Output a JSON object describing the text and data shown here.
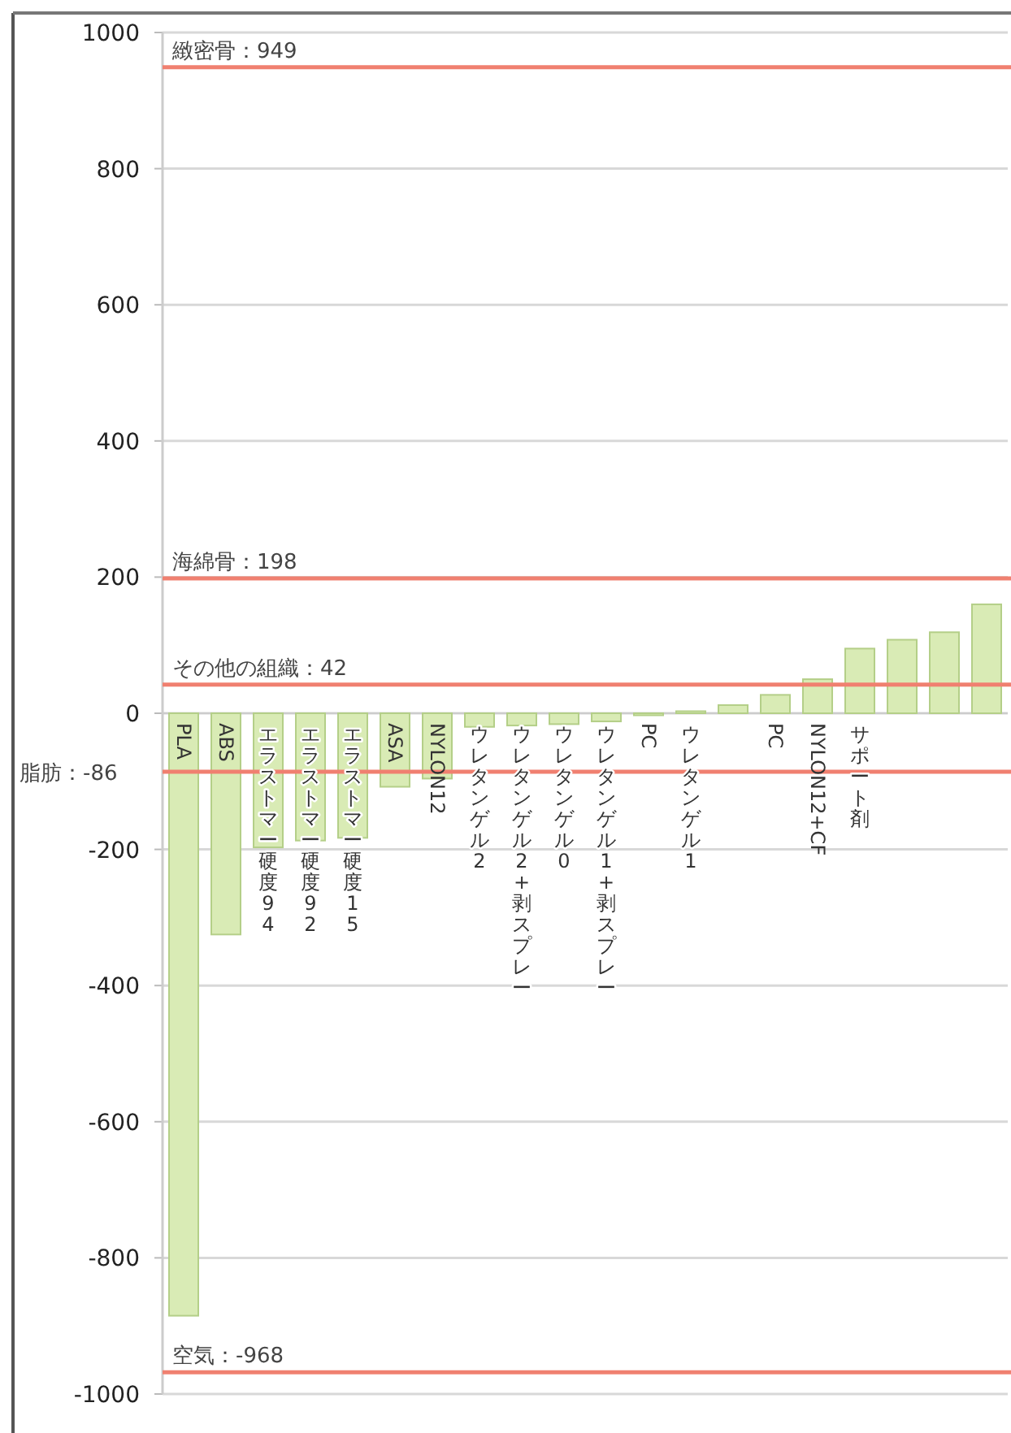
{
  "chart_data": {
    "type": "bar",
    "categories": [
      "PLA",
      "ABS",
      "エラストマー硬度94",
      "エラストマー硬度92",
      "エラストマー硬度15",
      "ASA",
      "NYLON12",
      "ウレタンゲル2",
      "ウレタンゲル2+剥スプレー",
      "ウレタンゲル0",
      "ウレタンゲル1+剥スプレー",
      "PC",
      "ウレタンゲル1",
      null,
      "PC",
      "NYLON12+CF",
      "サポート剤",
      null,
      null,
      null
    ],
    "values": [
      -885,
      -325,
      -197,
      -187,
      -183,
      -108,
      -96,
      -20,
      -18,
      -16,
      -12,
      -3,
      3,
      12,
      27,
      50,
      95,
      108,
      119,
      160
    ],
    "color": "#d9ebb5",
    "ylim": [
      -1000,
      1000
    ],
    "yticks": [
      -1000,
      -800,
      -600,
      -400,
      -200,
      0,
      200,
      400,
      600,
      800,
      1000
    ],
    "grid": "y",
    "ref_lines": [
      {
        "axis": "y",
        "value": 949,
        "label": "緻密骨：949",
        "color": "#f08070"
      },
      {
        "axis": "y",
        "value": 198,
        "label": "海綿骨：198",
        "color": "#f08070"
      },
      {
        "axis": "y",
        "value": 42,
        "label": "その他の組織：42",
        "color": "#f08070"
      },
      {
        "axis": "y",
        "value": -86,
        "label": "脂肪：-86",
        "color": "#f08070"
      },
      {
        "axis": "y",
        "value": -968,
        "label": "空気：-968",
        "color": "#f08070"
      }
    ]
  }
}
